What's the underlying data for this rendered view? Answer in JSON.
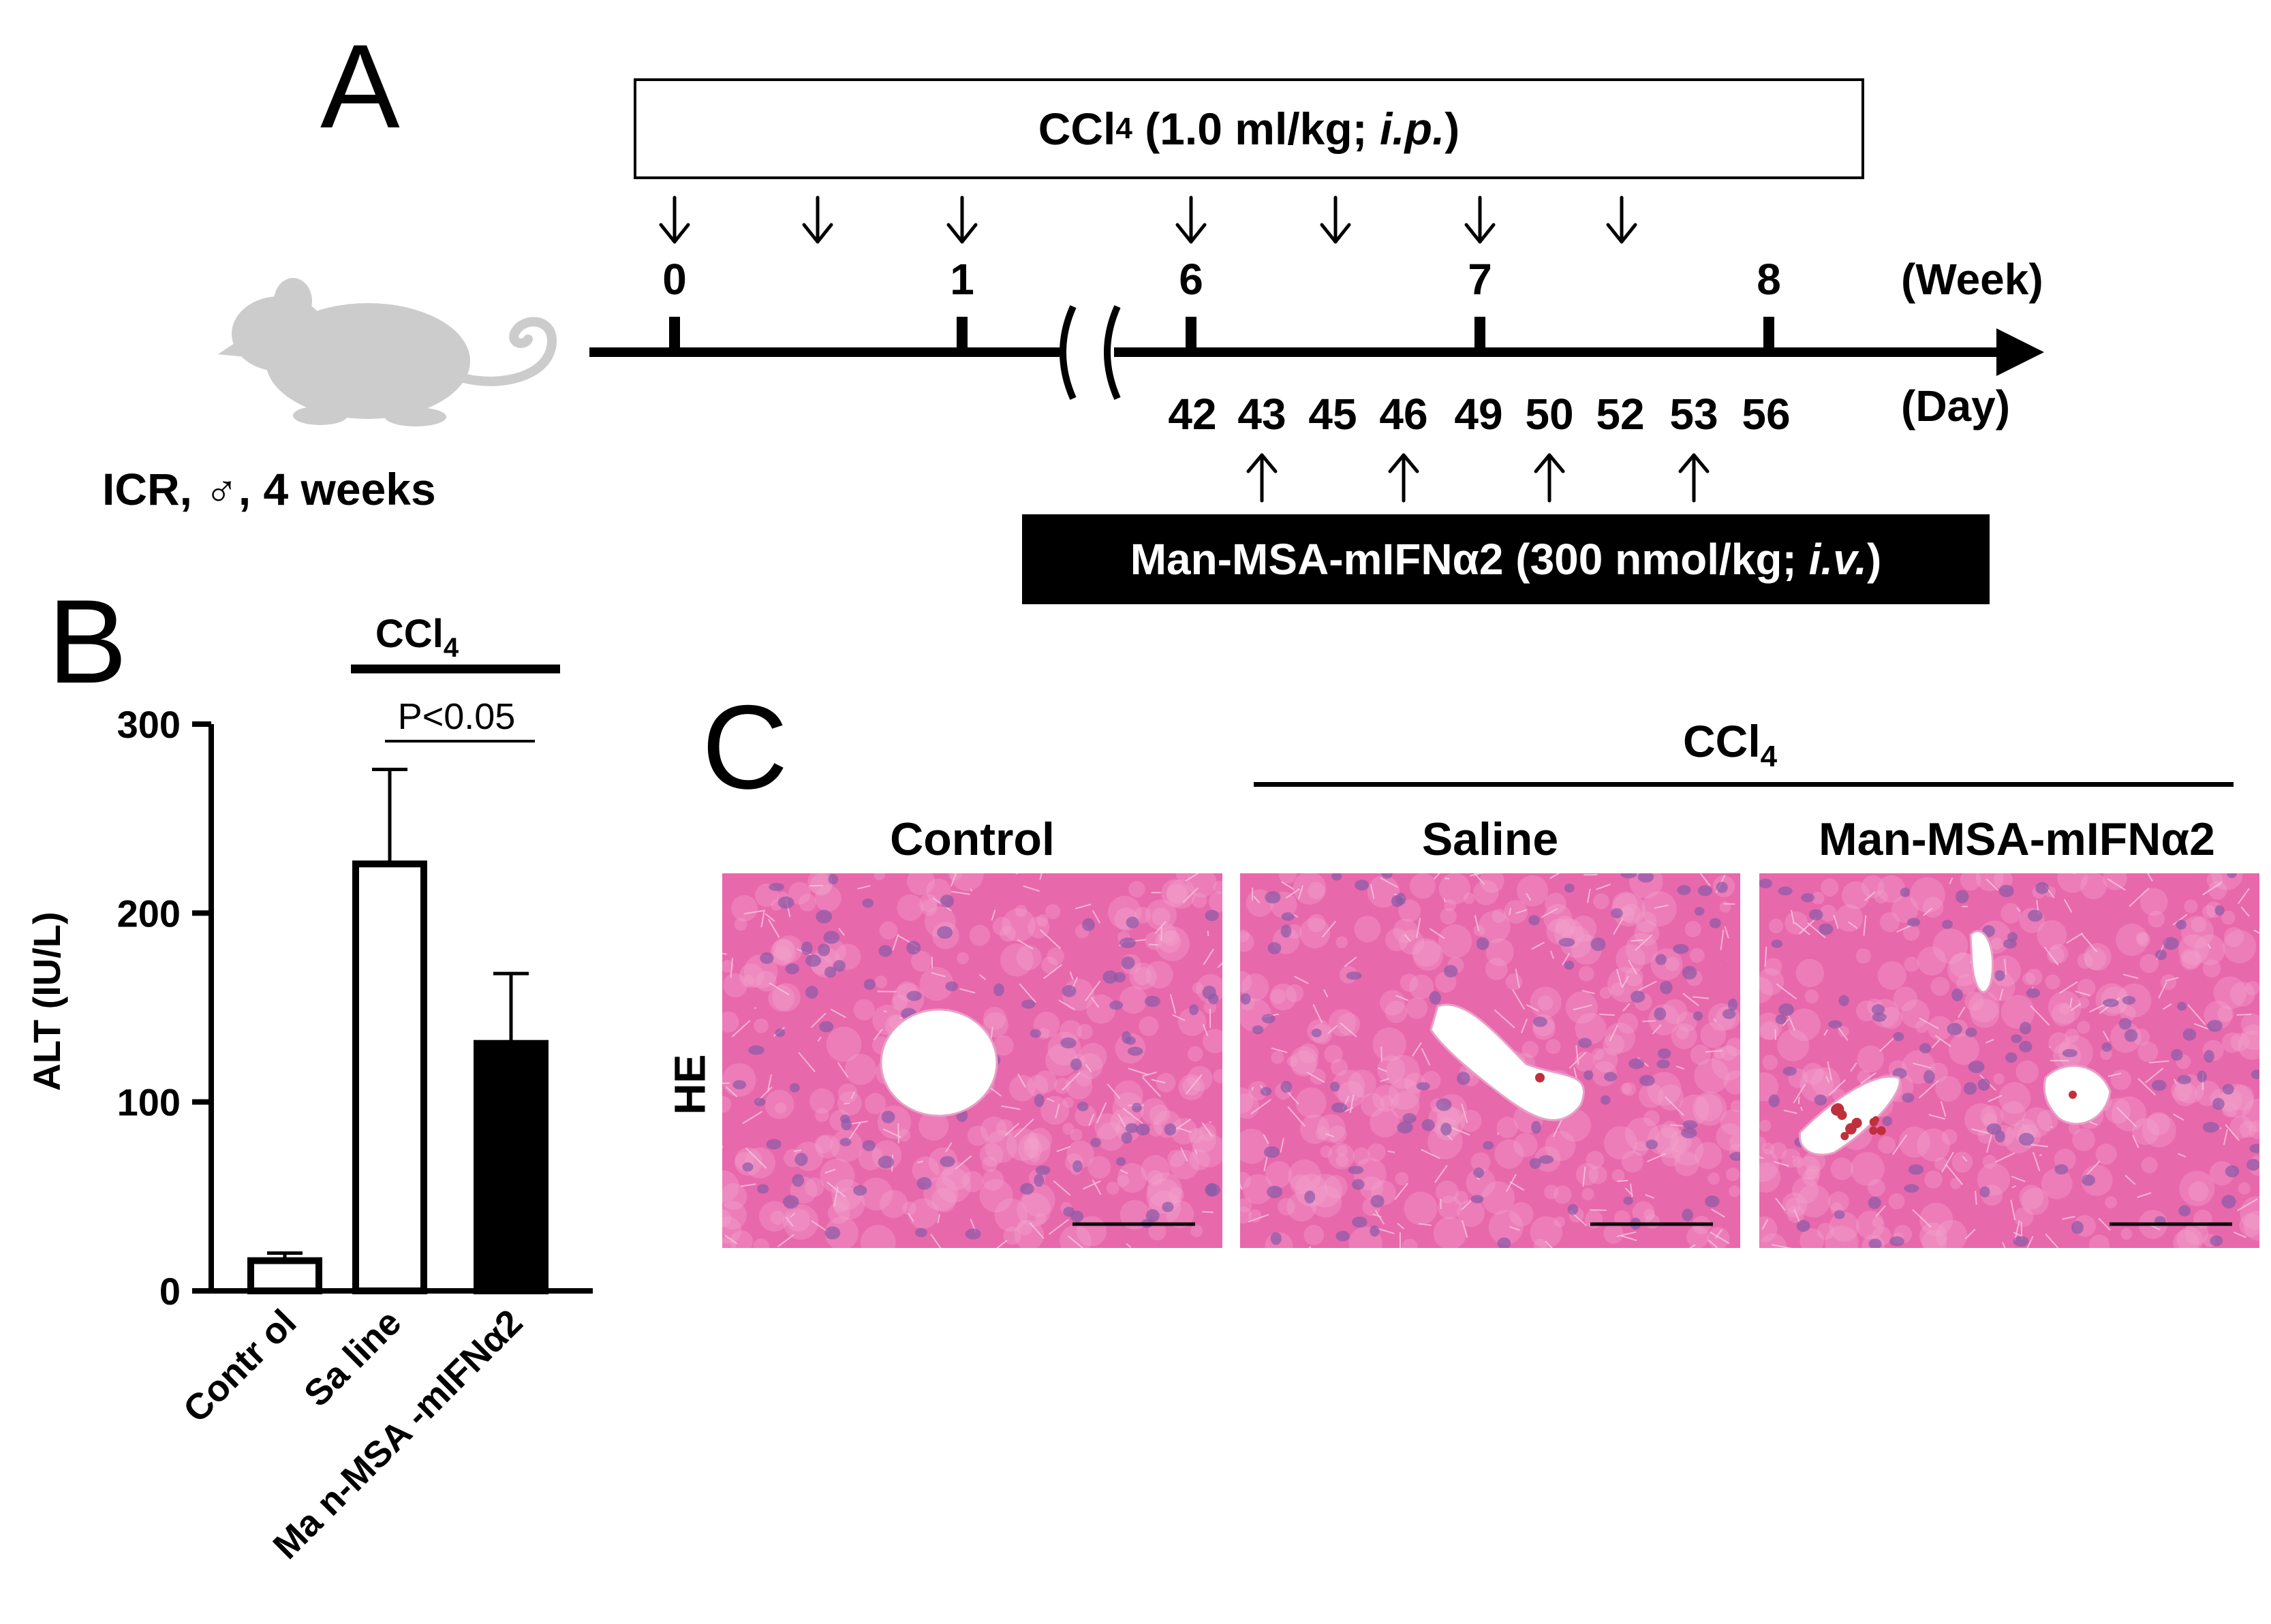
{
  "panel_labels": {
    "a": "A",
    "b": "B",
    "c": "C"
  },
  "panel_a": {
    "mouse_label": "ICR, ♂, 4 weeks",
    "ccl4_box": {
      "prefix": "CCl",
      "sub": "4",
      "dose": " (1.0 ml/kg; ",
      "route": "i.p.",
      "close": ")"
    },
    "week_ticks": [
      "0",
      "1",
      "6",
      "7",
      "8"
    ],
    "week_unit": "(Week)",
    "day_ticks": [
      "42",
      "43",
      "45",
      "46",
      "49",
      "50",
      "52",
      "53",
      "56"
    ],
    "day_unit": "(Day)",
    "treatment_box": {
      "text": "Man-MSA-mIFNα2 (300 nmol/kg; ",
      "route": "i.v.",
      "close": ")"
    },
    "colors": {
      "mouse": "#cccccc",
      "treatment_box": "#000000"
    }
  },
  "chart_data": {
    "type": "bar",
    "categories": [
      "Control",
      "Saline",
      "Man-MSA-mIFNα2"
    ],
    "category_labels_as_printed": [
      "Contr ol",
      "Sa line",
      "Ma n-MSA -mIFNα2"
    ],
    "values": [
      16,
      226,
      131
    ],
    "errors": [
      4,
      50,
      37
    ],
    "fills": [
      "#ffffff",
      "#ffffff",
      "#000000"
    ],
    "ylabel": "ALT (IU/L)",
    "yticks": [
      0,
      100,
      200,
      300
    ],
    "ylim": [
      0,
      300
    ],
    "bracket_label": {
      "prefix": "CCl",
      "sub": "4"
    },
    "significance": "P<0.05"
  },
  "panel_c": {
    "group_label": {
      "prefix": "CCl",
      "sub": "4"
    },
    "columns": [
      "Control",
      "Saline",
      "Man-MSA-mIFNα2"
    ],
    "row_label": "HE",
    "colors": {
      "tissue": "#e868ac",
      "nuclei": "#8a5aa8",
      "lumen": "#ffffff",
      "blood": "#c0303c"
    }
  }
}
